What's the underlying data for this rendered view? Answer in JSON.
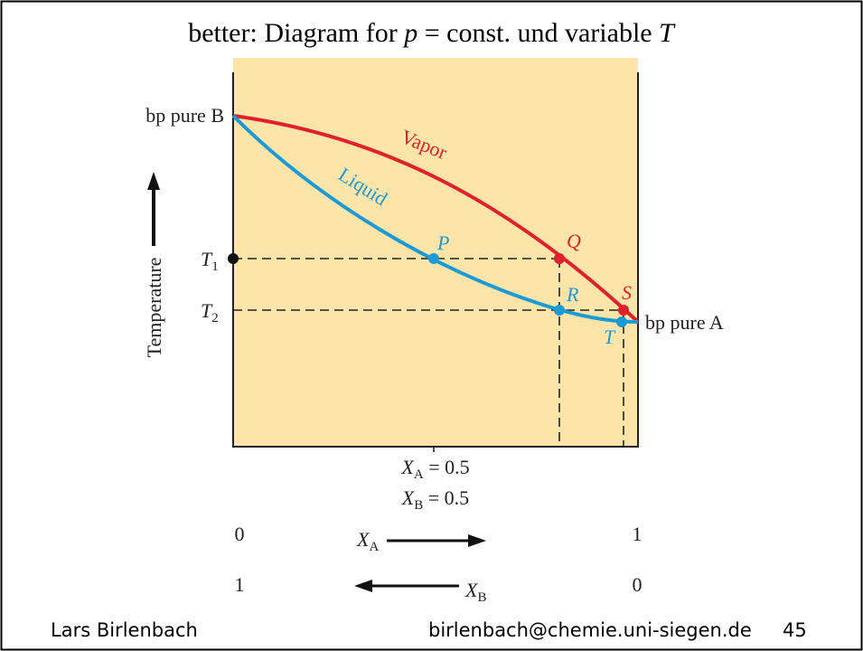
{
  "title": [
    "better: Diagram for ",
    "p",
    " = const. und variable ",
    "T"
  ],
  "diagram": {
    "bp_pure_b": "bp pure B",
    "bp_pure_a": "bp pure A",
    "vapor": "Vapor",
    "liquid": "Liquid",
    "points": {
      "P": "P",
      "Q": "Q",
      "R": "R",
      "S": "S",
      "T": "T"
    },
    "t1": {
      "base": "T",
      "sub": "1"
    },
    "t2": {
      "base": "T",
      "sub": "2"
    },
    "y_axis": "Temperature",
    "xa_half": {
      "base": "X",
      "sub": "A",
      "rest": " = 0.5"
    },
    "xb_half": {
      "base": "X",
      "sub": "B",
      "rest": " = 0.5"
    },
    "xa_row": {
      "left": "0",
      "base": "X",
      "sub": "A",
      "right": "1"
    },
    "xb_row": {
      "left": "1",
      "base": "X",
      "sub": "B",
      "right": "0"
    }
  },
  "footer": {
    "author": "Lars Birlenbach",
    "email": "birlenbach@chemie.uni-siegen.de",
    "page": "45"
  }
}
